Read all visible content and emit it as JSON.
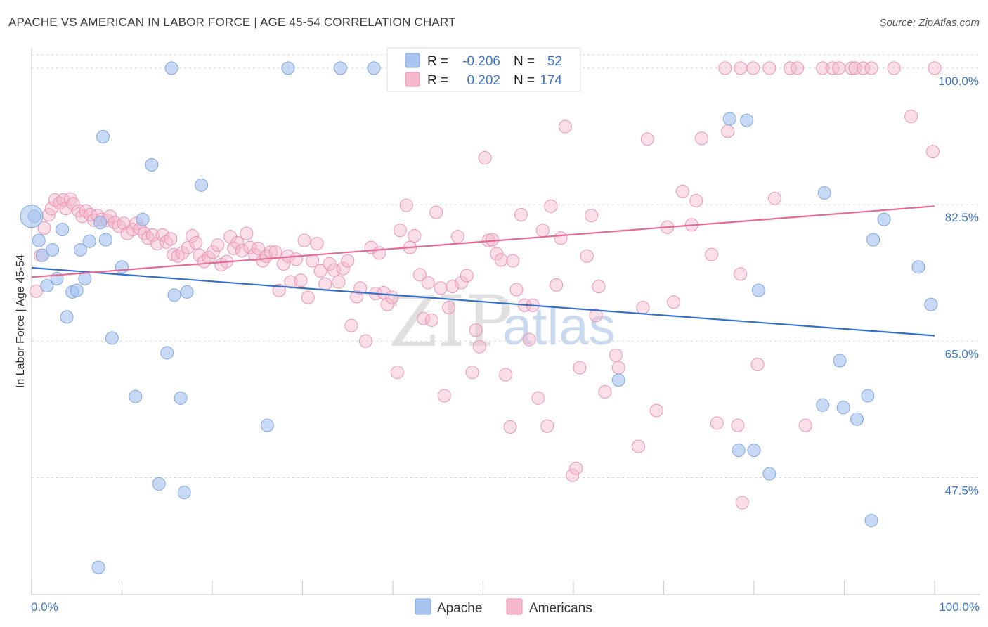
{
  "header": {
    "title": "APACHE VS AMERICAN IN LABOR FORCE | AGE 45-54 CORRELATION CHART",
    "source": "Source: ZipAtlas.com"
  },
  "watermark": {
    "zip": "ZIP",
    "atlas": "atlas"
  },
  "legend": {
    "apache": {
      "r_label": "R =",
      "r_value": "-0.206",
      "n_label": "N =",
      "n_value": "52"
    },
    "americans": {
      "r_label": "R =",
      "r_value": "0.202",
      "n_label": "N =",
      "n_value": "174"
    }
  },
  "bottom_legend": {
    "apache": "Apache",
    "americans": "Americans"
  },
  "chart_data": {
    "type": "scatter",
    "xlabel": "",
    "ylabel": "In Labor Force | Age 45-54",
    "xlim": [
      0,
      100
    ],
    "ylim": [
      32.5,
      103.5
    ],
    "x_tick_labels": [
      "0.0%",
      "100.0%"
    ],
    "y_ticks": [
      47.5,
      65.0,
      82.5,
      100.0
    ],
    "y_tick_labels": [
      "47.5%",
      "65.0%",
      "82.5%",
      "100.0%"
    ],
    "colors": {
      "apache": "#a9c5ef",
      "apache_line": "#3470c8",
      "americans": "#f5b8cb",
      "americans_line": "#e46b93",
      "tick": "#3b74c7"
    },
    "series": [
      {
        "name": "Apache",
        "trend": [
          [
            0,
            74.4
          ],
          [
            100,
            65.7
          ]
        ],
        "points": [
          [
            0.3,
            81.0
          ],
          [
            0.8,
            77.9
          ],
          [
            1.2,
            76.0
          ],
          [
            1.7,
            72.1
          ],
          [
            2.3,
            76.7
          ],
          [
            2.8,
            73.0
          ],
          [
            3.4,
            79.3
          ],
          [
            3.9,
            68.1
          ],
          [
            4.5,
            71.3
          ],
          [
            5.0,
            71.5
          ],
          [
            5.4,
            76.7
          ],
          [
            5.9,
            73.0
          ],
          [
            6.4,
            77.8
          ],
          [
            7.4,
            36.0
          ],
          [
            7.6,
            80.2
          ],
          [
            7.9,
            91.2
          ],
          [
            8.2,
            78.0
          ],
          [
            8.9,
            65.4
          ],
          [
            10.0,
            74.5
          ],
          [
            11.5,
            57.9
          ],
          [
            12.3,
            80.6
          ],
          [
            13.3,
            87.6
          ],
          [
            14.1,
            46.7
          ],
          [
            15.0,
            63.5
          ],
          [
            15.5,
            100.0
          ],
          [
            15.8,
            70.9
          ],
          [
            16.5,
            57.7
          ],
          [
            16.9,
            45.6
          ],
          [
            17.2,
            71.3
          ],
          [
            18.8,
            85.0
          ],
          [
            26.1,
            54.2
          ],
          [
            28.4,
            100.0
          ],
          [
            34.2,
            100.0
          ],
          [
            37.9,
            100.0
          ],
          [
            65.0,
            60.0
          ],
          [
            77.3,
            93.5
          ],
          [
            79.2,
            93.3
          ],
          [
            78.3,
            51.0
          ],
          [
            80.0,
            51.0
          ],
          [
            80.5,
            71.5
          ],
          [
            81.7,
            48.0
          ],
          [
            87.8,
            84.0
          ],
          [
            87.6,
            56.8
          ],
          [
            89.5,
            62.5
          ],
          [
            89.9,
            56.5
          ],
          [
            91.4,
            55.0
          ],
          [
            92.6,
            58.0
          ],
          [
            93.0,
            42.0
          ],
          [
            93.2,
            78.0
          ],
          [
            94.4,
            80.6
          ],
          [
            98.2,
            74.5
          ],
          [
            99.6,
            69.7
          ]
        ]
      },
      {
        "name": "Americans",
        "trend": [
          [
            0,
            73.2
          ],
          [
            100,
            82.3
          ]
        ],
        "points": [
          [
            0.5,
            71.4
          ],
          [
            1.0,
            76.0
          ],
          [
            1.4,
            79.5
          ],
          [
            1.9,
            81.2
          ],
          [
            2.2,
            82.0
          ],
          [
            2.6,
            83.1
          ],
          [
            3.1,
            82.7
          ],
          [
            3.5,
            83.1
          ],
          [
            3.8,
            82.0
          ],
          [
            4.3,
            83.2
          ],
          [
            4.6,
            82.6
          ],
          [
            5.2,
            81.7
          ],
          [
            5.6,
            81.0
          ],
          [
            6.0,
            81.7
          ],
          [
            6.5,
            81.2
          ],
          [
            6.9,
            80.5
          ],
          [
            7.3,
            81.1
          ],
          [
            7.8,
            80.6
          ],
          [
            8.4,
            80.5
          ],
          [
            8.7,
            81.0
          ],
          [
            9.2,
            80.2
          ],
          [
            9.7,
            79.7
          ],
          [
            10.2,
            80.1
          ],
          [
            10.6,
            78.8
          ],
          [
            11.2,
            79.3
          ],
          [
            11.6,
            80.1
          ],
          [
            12.0,
            79.4
          ],
          [
            12.5,
            78.8
          ],
          [
            12.9,
            78.2
          ],
          [
            13.4,
            78.6
          ],
          [
            13.9,
            77.5
          ],
          [
            14.5,
            78.6
          ],
          [
            14.9,
            77.7
          ],
          [
            15.4,
            78.1
          ],
          [
            15.7,
            76.1
          ],
          [
            16.2,
            75.9
          ],
          [
            16.7,
            76.3
          ],
          [
            17.3,
            77.0
          ],
          [
            17.8,
            78.5
          ],
          [
            18.2,
            77.6
          ],
          [
            18.6,
            76.0
          ],
          [
            19.1,
            75.2
          ],
          [
            19.6,
            75.7
          ],
          [
            20.1,
            76.4
          ],
          [
            20.6,
            77.3
          ],
          [
            21.0,
            74.8
          ],
          [
            21.6,
            75.2
          ],
          [
            22.0,
            78.4
          ],
          [
            22.4,
            76.9
          ],
          [
            22.8,
            77.6
          ],
          [
            23.3,
            76.6
          ],
          [
            23.8,
            78.8
          ],
          [
            24.2,
            77.0
          ],
          [
            24.7,
            76.1
          ],
          [
            25.1,
            76.9
          ],
          [
            25.6,
            75.3
          ],
          [
            26.0,
            75.9
          ],
          [
            26.5,
            76.4
          ],
          [
            27.0,
            76.4
          ],
          [
            27.4,
            71.5
          ],
          [
            27.9,
            74.9
          ],
          [
            28.4,
            75.9
          ],
          [
            28.7,
            72.6
          ],
          [
            29.3,
            75.5
          ],
          [
            29.8,
            72.8
          ],
          [
            30.2,
            77.9
          ],
          [
            30.6,
            70.6
          ],
          [
            31.1,
            75.3
          ],
          [
            31.6,
            77.5
          ],
          [
            32.0,
            74.0
          ],
          [
            32.5,
            72.3
          ],
          [
            33.0,
            74.9
          ],
          [
            33.5,
            74.1
          ],
          [
            34.0,
            72.6
          ],
          [
            34.5,
            74.3
          ],
          [
            35.0,
            75.3
          ],
          [
            35.4,
            67.0
          ],
          [
            36.0,
            70.7
          ],
          [
            36.4,
            71.8
          ],
          [
            37.0,
            65.0
          ],
          [
            37.6,
            77.0
          ],
          [
            38.1,
            71.1
          ],
          [
            38.5,
            76.3
          ],
          [
            39.0,
            71.2
          ],
          [
            39.4,
            69.7
          ],
          [
            39.9,
            70.6
          ],
          [
            40.5,
            61.0
          ],
          [
            40.8,
            79.2
          ],
          [
            41.5,
            82.4
          ],
          [
            41.9,
            77.0
          ],
          [
            42.4,
            78.5
          ],
          [
            43.0,
            73.5
          ],
          [
            43.4,
            67.9
          ],
          [
            43.9,
            72.5
          ],
          [
            44.3,
            67.7
          ],
          [
            44.8,
            81.5
          ],
          [
            45.3,
            71.8
          ],
          [
            45.7,
            58.0
          ],
          [
            46.2,
            69.3
          ],
          [
            46.6,
            72.0
          ],
          [
            47.2,
            78.4
          ],
          [
            47.6,
            72.5
          ],
          [
            48.2,
            73.4
          ],
          [
            48.8,
            61.0
          ],
          [
            49.2,
            66.4
          ],
          [
            49.6,
            64.3
          ],
          [
            50.2,
            88.5
          ],
          [
            50.6,
            77.9
          ],
          [
            51.0,
            78.0
          ],
          [
            51.5,
            76.2
          ],
          [
            52.0,
            75.4
          ],
          [
            52.5,
            60.7
          ],
          [
            53.0,
            54.0
          ],
          [
            53.3,
            75.3
          ],
          [
            53.7,
            71.6
          ],
          [
            54.2,
            81.2
          ],
          [
            54.6,
            69.6
          ],
          [
            55.1,
            65.2
          ],
          [
            55.5,
            69.6
          ],
          [
            56.1,
            57.7
          ],
          [
            56.6,
            79.2
          ],
          [
            57.1,
            54.1
          ],
          [
            57.5,
            82.3
          ],
          [
            58.1,
            72.2
          ],
          [
            58.6,
            78.2
          ],
          [
            59.1,
            92.5
          ],
          [
            59.9,
            47.8
          ],
          [
            60.3,
            48.7
          ],
          [
            60.7,
            61.6
          ],
          [
            61.5,
            75.9
          ],
          [
            62.0,
            81.1
          ],
          [
            62.5,
            68.3
          ],
          [
            62.8,
            72.0
          ],
          [
            63.5,
            58.5
          ],
          [
            64.7,
            63.2
          ],
          [
            65.0,
            61.6
          ],
          [
            67.2,
            51.5
          ],
          [
            67.7,
            69.3
          ],
          [
            68.2,
            90.9
          ],
          [
            69.2,
            56.1
          ],
          [
            70.4,
            79.6
          ],
          [
            71.1,
            70.0
          ],
          [
            72.1,
            84.2
          ],
          [
            73.1,
            79.9
          ],
          [
            73.6,
            83.0
          ],
          [
            74.2,
            91.0
          ],
          [
            75.3,
            76.1
          ],
          [
            75.9,
            54.5
          ],
          [
            76.8,
            100.0
          ],
          [
            77.1,
            91.9
          ],
          [
            78.2,
            54.2
          ],
          [
            78.5,
            73.6
          ],
          [
            78.5,
            100.0
          ],
          [
            78.7,
            44.3
          ],
          [
            79.9,
            100.0
          ],
          [
            80.4,
            62.0
          ],
          [
            81.7,
            100.0
          ],
          [
            82.3,
            83.3
          ],
          [
            84.0,
            100.0
          ],
          [
            84.8,
            100.0
          ],
          [
            85.7,
            54.2
          ],
          [
            87.6,
            100.0
          ],
          [
            88.7,
            100.0
          ],
          [
            89.4,
            100.0
          ],
          [
            90.8,
            100.0
          ],
          [
            91.2,
            100.0
          ],
          [
            92.1,
            100.0
          ],
          [
            93.0,
            100.0
          ],
          [
            95.5,
            100.0
          ],
          [
            97.4,
            93.8
          ],
          [
            99.8,
            89.3
          ],
          [
            100.0,
            100.0
          ]
        ]
      }
    ]
  }
}
